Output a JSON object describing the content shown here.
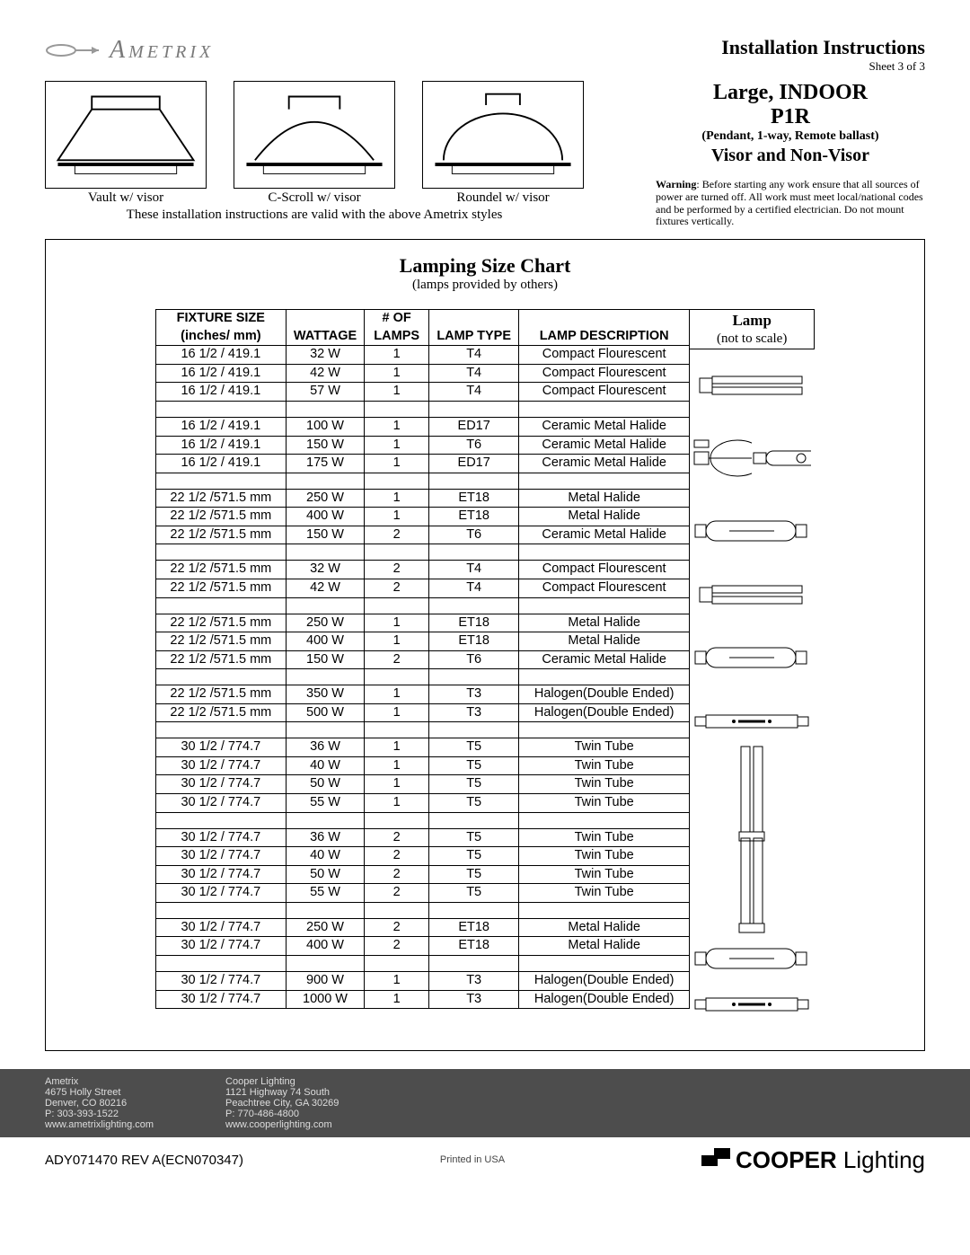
{
  "brand": "Ametrix",
  "doc_title": "Installation Instructions",
  "sheet": "Sheet 3 of 3",
  "product": {
    "line1": "Large, INDOOR",
    "code": "P1R",
    "subtitle": "(Pendant, 1-way, Remote ballast)",
    "visor": "Visor and Non-Visor"
  },
  "warning_label": "Warning",
  "warning_text": ": Before starting any work ensure that all sources of power are turned off. All work must meet local/national codes and be performed by a certified electrician. Do not mount fixtures vertically.",
  "styles": [
    {
      "caption": "Vault w/ visor"
    },
    {
      "caption": "C-Scroll w/ visor"
    },
    {
      "caption": "Roundel w/ visor"
    }
  ],
  "styles_note": "These installation instructions are valid with the above Ametrix styles",
  "chart": {
    "title": "Lamping Size Chart",
    "subtitle": "(lamps provided by others)",
    "columns": [
      "FIXTURE SIZE (inches/ mm)",
      "WATTAGE",
      "# OF LAMPS",
      "LAMP TYPE",
      "LAMP DESCRIPTION"
    ],
    "lamp_header": [
      "Lamp",
      "(not to scale)"
    ],
    "groups": [
      {
        "lamp_kind": "compact-flourescent",
        "rows": [
          [
            "16 1/2 / 419.1",
            "32 W",
            "1",
            "T4",
            "Compact Flourescent"
          ],
          [
            "16 1/2 / 419.1",
            "42 W",
            "1",
            "T4",
            "Compact Flourescent"
          ],
          [
            "16 1/2 / 419.1",
            "57 W",
            "1",
            "T4",
            "Compact Flourescent"
          ]
        ]
      },
      {
        "lamp_kind": "ceramic-metal-halide-bulb",
        "rows": [
          [
            "16 1/2 / 419.1",
            "100 W",
            "1",
            "ED17",
            "Ceramic Metal Halide"
          ],
          [
            "16 1/2 / 419.1",
            "150 W",
            "1",
            "T6",
            "Ceramic Metal Halide"
          ],
          [
            "16 1/2 / 419.1",
            "175 W",
            "1",
            "ED17",
            "Ceramic Metal Halide"
          ]
        ]
      },
      {
        "lamp_kind": "metal-halide-tube",
        "rows": [
          [
            "22 1/2 /571.5 mm",
            "250 W",
            "1",
            "ET18",
            "Metal Halide"
          ],
          [
            "22 1/2 /571.5 mm",
            "400 W",
            "1",
            "ET18",
            "Metal Halide"
          ],
          [
            "22 1/2 /571.5 mm",
            "150 W",
            "2",
            "T6",
            "Ceramic Metal Halide"
          ]
        ]
      },
      {
        "lamp_kind": "compact-flourescent",
        "rows": [
          [
            "22 1/2 /571.5 mm",
            "32 W",
            "2",
            "T4",
            "Compact Flourescent"
          ],
          [
            "22 1/2 /571.5 mm",
            "42 W",
            "2",
            "T4",
            "Compact Flourescent"
          ]
        ]
      },
      {
        "lamp_kind": "metal-halide-tube",
        "rows": [
          [
            "22 1/2 /571.5 mm",
            "250 W",
            "1",
            "ET18",
            "Metal Halide"
          ],
          [
            "22 1/2 /571.5 mm",
            "400 W",
            "1",
            "ET18",
            "Metal Halide"
          ],
          [
            "22 1/2 /571.5 mm",
            "150 W",
            "2",
            "T6",
            "Ceramic Metal Halide"
          ]
        ]
      },
      {
        "lamp_kind": "halogen-double-ended",
        "rows": [
          [
            "22 1/2 /571.5 mm",
            "350 W",
            "1",
            "T3",
            "Halogen(Double Ended)"
          ],
          [
            "22 1/2 /571.5 mm",
            "500 W",
            "1",
            "T3",
            "Halogen(Double Ended)"
          ]
        ]
      },
      {
        "lamp_kind": "twin-tube",
        "rows": [
          [
            "30 1/2 / 774.7",
            "36 W",
            "1",
            "T5",
            "Twin Tube"
          ],
          [
            "30 1/2 / 774.7",
            "40 W",
            "1",
            "T5",
            "Twin Tube"
          ],
          [
            "30 1/2 / 774.7",
            "50 W",
            "1",
            "T5",
            "Twin Tube"
          ],
          [
            "30 1/2 / 774.7",
            "55 W",
            "1",
            "T5",
            "Twin Tube"
          ]
        ]
      },
      {
        "lamp_kind": "twin-tube",
        "rows": [
          [
            "30 1/2 / 774.7",
            "36 W",
            "2",
            "T5",
            "Twin Tube"
          ],
          [
            "30 1/2 / 774.7",
            "40 W",
            "2",
            "T5",
            "Twin Tube"
          ],
          [
            "30 1/2 / 774.7",
            "50 W",
            "2",
            "T5",
            "Twin Tube"
          ],
          [
            "30 1/2 / 774.7",
            "55 W",
            "2",
            "T5",
            "Twin Tube"
          ]
        ]
      },
      {
        "lamp_kind": "metal-halide-tube",
        "rows": [
          [
            "30 1/2 / 774.7",
            "250 W",
            "2",
            "ET18",
            "Metal Halide"
          ],
          [
            "30 1/2 / 774.7",
            "400 W",
            "2",
            "ET18",
            "Metal Halide"
          ]
        ]
      },
      {
        "lamp_kind": "halogen-double-ended",
        "rows": [
          [
            "30 1/2 / 774.7",
            "900 W",
            "1",
            "T3",
            "Halogen(Double Ended)"
          ],
          [
            "30 1/2 / 774.7",
            "1000 W",
            "1",
            "T3",
            "Halogen(Double Ended)"
          ]
        ]
      }
    ]
  },
  "footer": {
    "col1": [
      "Ametrix",
      "4675 Holly Street",
      "Denver, CO 80216",
      "P: 303-393-1522",
      "www.ametrixlighting.com"
    ],
    "col2": [
      "Cooper Lighting",
      "1121 Highway 74 South",
      "Peachtree City, GA 30269",
      "P: 770-486-4800",
      "www.cooperlighting.com"
    ]
  },
  "revision": "ADY071470  REV A(ECN070347)",
  "printed": "Printed in USA",
  "footer_brand": "COOPER",
  "footer_brand_suffix": " Lighting"
}
